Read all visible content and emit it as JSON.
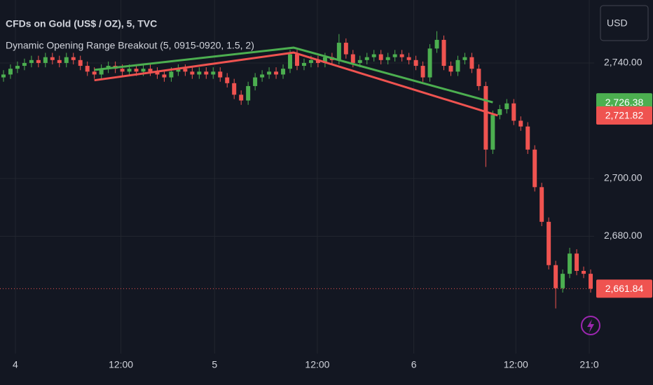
{
  "chart_data": {
    "type": "candlestick",
    "title": "CFDs on Gold (US$ / OZ), 5, TVC",
    "indicator": "Dynamic Opening Range Breakout (5, 0915-0920, 1.5, 2)",
    "currency": "USD",
    "up_color": "#4caf50",
    "down_color": "#ef5350",
    "candles": {
      "open": [
        2735,
        2736,
        2738,
        2739,
        2740,
        2741,
        2740,
        2742,
        2741,
        2740,
        2742,
        2741,
        2739,
        2737,
        2736,
        2738,
        2739,
        2738,
        2737,
        2738,
        2737,
        2738,
        2737,
        2736,
        2735,
        2737,
        2738,
        2737,
        2736,
        2737,
        2736,
        2737,
        2735,
        2733,
        2729,
        2727,
        2732,
        2735,
        2736,
        2737,
        2736,
        2738,
        2743,
        2739,
        2740,
        2741,
        2740,
        2742,
        2741,
        2747,
        2743,
        2740,
        2741,
        2742,
        2743,
        2741,
        2742,
        2743,
        2742,
        2741,
        2739,
        2735,
        2745,
        2748,
        2739,
        2737,
        2741,
        2742,
        2738,
        2732,
        2710,
        2722,
        2724,
        2726,
        2720,
        2718,
        2710,
        2697,
        2685,
        2670,
        2662,
        2667,
        2674,
        2668,
        2667
      ],
      "high": [
        2737.5,
        2739.5,
        2740.5,
        2741.5,
        2742.5,
        2742.5,
        2743.5,
        2743.5,
        2742.5,
        2743.5,
        2743.5,
        2742.5,
        2740.5,
        2738.5,
        2739.5,
        2740.5,
        2740.5,
        2739.5,
        2739.5,
        2739.5,
        2739.5,
        2739.5,
        2738.5,
        2737.5,
        2738.5,
        2739.5,
        2739.5,
        2738.5,
        2738.5,
        2738.5,
        2738.5,
        2738.5,
        2736.5,
        2734.5,
        2730.5,
        2733.5,
        2736.5,
        2737.5,
        2738.5,
        2738.5,
        2739.5,
        2744.5,
        2744.5,
        2741.5,
        2742.5,
        2742.5,
        2743.5,
        2743.5,
        2750,
        2748.5,
        2744.5,
        2742.5,
        2743.5,
        2744.5,
        2744.5,
        2743.5,
        2744.5,
        2744.5,
        2743.5,
        2742.5,
        2740.5,
        2746.5,
        2751,
        2749.5,
        2740.5,
        2742.5,
        2743.5,
        2743.5,
        2739.5,
        2733.5,
        2723.5,
        2725.5,
        2727.5,
        2727.5,
        2721.5,
        2719.5,
        2711.5,
        2698.5,
        2686.5,
        2671.5,
        2668.5,
        2676,
        2675.5,
        2669.5,
        2668.5
      ],
      "low": [
        2733.5,
        2734.5,
        2736.5,
        2737.5,
        2738.5,
        2738.5,
        2738.5,
        2739.5,
        2738.5,
        2738.5,
        2739.5,
        2737.5,
        2735.5,
        2734.5,
        2734.5,
        2736.5,
        2736.5,
        2735.5,
        2735.5,
        2735.5,
        2735.5,
        2735.5,
        2734.5,
        2733.5,
        2733.5,
        2735.5,
        2735.5,
        2734.5,
        2734.5,
        2734.5,
        2734.5,
        2733.5,
        2731.5,
        2727.5,
        2725.5,
        2725.5,
        2730.5,
        2733.5,
        2734.5,
        2734.5,
        2734.5,
        2736.5,
        2737.5,
        2737.5,
        2738.5,
        2738.5,
        2738.5,
        2739.5,
        2739.5,
        2741.5,
        2738.5,
        2738.5,
        2739.5,
        2740.5,
        2739.5,
        2739.5,
        2740.5,
        2740.5,
        2739.5,
        2737.5,
        2733.5,
        2733.5,
        2743.5,
        2737.5,
        2735.5,
        2735.5,
        2739.5,
        2736.5,
        2730.5,
        2704,
        2708.5,
        2720.5,
        2722.5,
        2718.5,
        2716.5,
        2708.5,
        2695.5,
        2683.5,
        2668.5,
        2655,
        2660.5,
        2665.5,
        2666.5,
        2665.5,
        2660.5
      ],
      "close": [
        2736,
        2738,
        2739,
        2740,
        2741,
        2740,
        2742,
        2741,
        2740,
        2742,
        2741,
        2739,
        2737,
        2736,
        2738,
        2739,
        2738,
        2737,
        2738,
        2737,
        2738,
        2737,
        2736,
        2735,
        2737,
        2738,
        2737,
        2736,
        2737,
        2736,
        2737,
        2735,
        2733,
        2729,
        2727,
        2732,
        2735,
        2736,
        2737,
        2736,
        2738,
        2743,
        2739,
        2740,
        2741,
        2740,
        2742,
        2741,
        2747,
        2743,
        2740,
        2741,
        2742,
        2743,
        2741,
        2742,
        2743,
        2742,
        2741,
        2739,
        2735,
        2745,
        2748,
        2739,
        2737,
        2741,
        2742,
        2738,
        2732,
        2710,
        2722,
        2724,
        2726,
        2720,
        2718,
        2710,
        2697,
        2685,
        2670,
        2662,
        2667,
        2674,
        2668,
        2667,
        2661.84
      ]
    },
    "overlays": [
      {
        "color": "#4caf50",
        "x": [
          13,
          41.5,
          70
        ],
        "values": [
          2737.6,
          2745.3,
          2726.38
        ]
      },
      {
        "color": "#ef5350",
        "x": [
          13,
          41.5,
          70.7
        ],
        "values": [
          2734,
          2743.6,
          2721.82
        ]
      }
    ],
    "price_labels": [
      {
        "value": 2726.38,
        "label": "2,726.38",
        "color": "#4caf50"
      },
      {
        "value": 2721.82,
        "label": "2,721.82",
        "color": "#ef5350"
      },
      {
        "value": 2661.84,
        "label": "2,661.84",
        "color": "#ef5350"
      }
    ],
    "xlim": [
      -0.5,
      84.5
    ],
    "xticks": [
      {
        "value": 1.7,
        "label": "4"
      },
      {
        "value": 16.8,
        "label": "12:00"
      },
      {
        "value": 30.2,
        "label": "5"
      },
      {
        "value": 44.9,
        "label": "12:00"
      },
      {
        "value": 58.7,
        "label": "6"
      },
      {
        "value": 73.3,
        "label": "12:00"
      },
      {
        "value": 83.8,
        "label": "21:0"
      }
    ],
    "ylim": [
      2639.4,
      2761.8
    ],
    "yticks": [
      {
        "value": 2740,
        "label": "2,740.00"
      },
      {
        "value": 2700,
        "label": "2,700.00"
      },
      {
        "value": 2680,
        "label": "2,680.00"
      }
    ],
    "grid": true
  }
}
